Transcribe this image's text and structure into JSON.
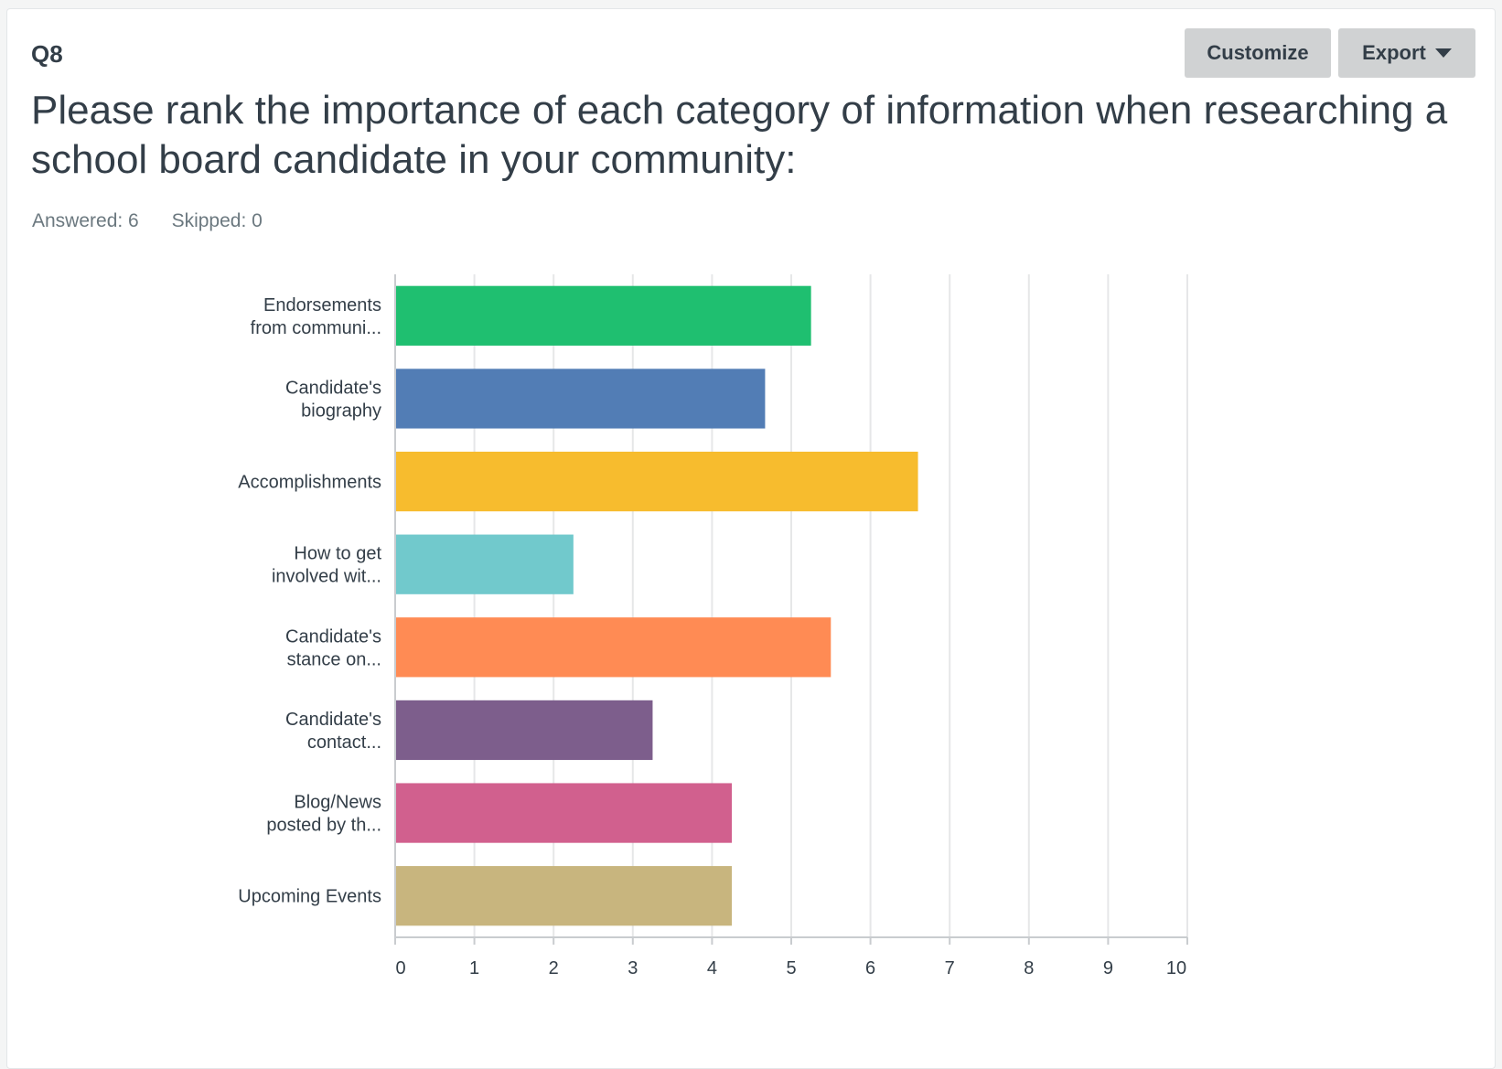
{
  "question": {
    "number": "Q8",
    "title": "Please rank the importance of each category of information when researching a school board candidate in your community:",
    "answered": "Answered: 6",
    "skipped": "Skipped: 0"
  },
  "toolbar": {
    "customize_label": "Customize",
    "export_label": "Export"
  },
  "chart_data": {
    "type": "bar",
    "orientation": "horizontal",
    "title": "",
    "xlabel": "",
    "ylabel": "",
    "xlim": [
      0,
      10
    ],
    "ticks": [
      0,
      1,
      2,
      3,
      4,
      5,
      6,
      7,
      8,
      9,
      10
    ],
    "grid": true,
    "categories": [
      [
        "Endorsements",
        "from communi..."
      ],
      [
        "Candidate's",
        "biography"
      ],
      [
        "Accomplishments"
      ],
      [
        "How to get",
        "involved wit..."
      ],
      [
        "Candidate's",
        "stance on..."
      ],
      [
        "Candidate's",
        "contact..."
      ],
      [
        "Blog/News",
        "posted by th..."
      ],
      [
        "Upcoming Events"
      ]
    ],
    "values": [
      5.25,
      4.67,
      6.6,
      2.25,
      5.5,
      3.25,
      4.25,
      4.25
    ],
    "colors": [
      "#1fbf70",
      "#527db5",
      "#f7bc2e",
      "#71c9cc",
      "#ff8b54",
      "#7d5e8c",
      "#d1608e",
      "#c8b57e"
    ]
  }
}
